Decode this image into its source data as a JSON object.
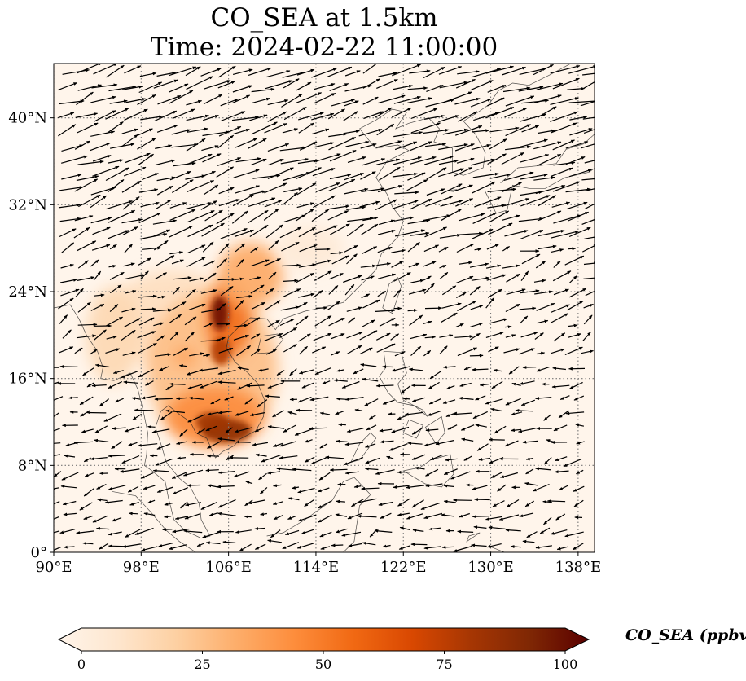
{
  "title": {
    "line1": "CO_SEA at 1.5km",
    "line2": "Time: 2024-02-22 11:00:00"
  },
  "map": {
    "extent": {
      "lon": [
        90,
        139.5
      ],
      "lat": [
        0,
        45
      ]
    },
    "lat_ticks": [
      {
        "value": 0,
        "label": "0°"
      },
      {
        "value": 8,
        "label": "8°N"
      },
      {
        "value": 16,
        "label": "16°N"
      },
      {
        "value": 24,
        "label": "24°N"
      },
      {
        "value": 32,
        "label": "32°N"
      },
      {
        "value": 40,
        "label": "40°N"
      }
    ],
    "lon_ticks": [
      {
        "value": 90,
        "label": "90°E"
      },
      {
        "value": 98,
        "label": "98°E"
      },
      {
        "value": 106,
        "label": "106°E"
      },
      {
        "value": 114,
        "label": "114°E"
      },
      {
        "value": 122,
        "label": "122°E"
      },
      {
        "value": 130,
        "label": "130°E"
      },
      {
        "value": 138,
        "label": "138°E"
      }
    ],
    "gridlines": true,
    "background_color": "#fff5eb",
    "co_plumes": [
      {
        "lon": 101.0,
        "lat": 21.5,
        "rlon": 6.0,
        "rlat": 4.5,
        "value": 15
      },
      {
        "lon": 104.5,
        "lat": 17.0,
        "rlon": 6.0,
        "rlat": 7.0,
        "value": 28
      },
      {
        "lon": 104.8,
        "lat": 12.5,
        "rlon": 4.5,
        "rlat": 2.8,
        "value": 45
      },
      {
        "lon": 106.0,
        "lat": 21.5,
        "rlon": 2.0,
        "rlat": 3.5,
        "value": 55
      },
      {
        "lon": 95.5,
        "lat": 20.0,
        "rlon": 2.5,
        "rlat": 4.5,
        "value": 18
      },
      {
        "lon": 108.0,
        "lat": 25.5,
        "rlon": 3.0,
        "rlat": 3.0,
        "value": 35
      },
      {
        "lon": 113.5,
        "lat": 28.0,
        "rlon": 3.0,
        "rlat": 2.0,
        "value": 8
      },
      {
        "lon": 105.8,
        "lat": 11.2,
        "rlon": 2.3,
        "rlat": 1.1,
        "value": 85
      },
      {
        "lon": 104.5,
        "lat": 12.0,
        "rlon": 1.5,
        "rlat": 0.9,
        "value": 80
      },
      {
        "lon": 105.2,
        "lat": 22.0,
        "rlon": 0.8,
        "rlat": 1.6,
        "value": 95
      },
      {
        "lon": 105.3,
        "lat": 18.5,
        "rlon": 0.9,
        "rlat": 1.3,
        "value": 75
      },
      {
        "lon": 102.0,
        "lat": 18.0,
        "rlon": 0.8,
        "rlat": 0.8,
        "value": 40
      }
    ],
    "wind_field": {
      "description_regions": [
        {
          "lat_min": 28,
          "lat_max": 45,
          "lon_min": 90,
          "lon_max": 120,
          "u": 8,
          "v": 3
        },
        {
          "lat_min": 28,
          "lat_max": 45,
          "lon_min": 120,
          "lon_max": 139.5,
          "u": 9,
          "v": 2.5
        },
        {
          "lat_min": 18,
          "lat_max": 28,
          "lon_min": 90,
          "lon_max": 139.5,
          "u": 5,
          "v": 2
        },
        {
          "lat_min": 0,
          "lat_max": 18,
          "lon_min": 90,
          "lon_max": 139.5,
          "u": -5,
          "v": -1
        }
      ]
    }
  },
  "colorbar": {
    "label": "CO_SEA (ppbv)",
    "min": 0,
    "max": 100,
    "ticks": [
      {
        "value": 0,
        "label": "0"
      },
      {
        "value": 25,
        "label": "25"
      },
      {
        "value": 50,
        "label": "50"
      },
      {
        "value": 75,
        "label": "75"
      },
      {
        "value": 100,
        "label": "100"
      }
    ],
    "colormap_stops": [
      "#fff5eb",
      "#fee6ce",
      "#fdd0a2",
      "#fdae6b",
      "#fd8d3c",
      "#f16913",
      "#d94801",
      "#a63603",
      "#7f2704",
      "#5a0000"
    ]
  }
}
